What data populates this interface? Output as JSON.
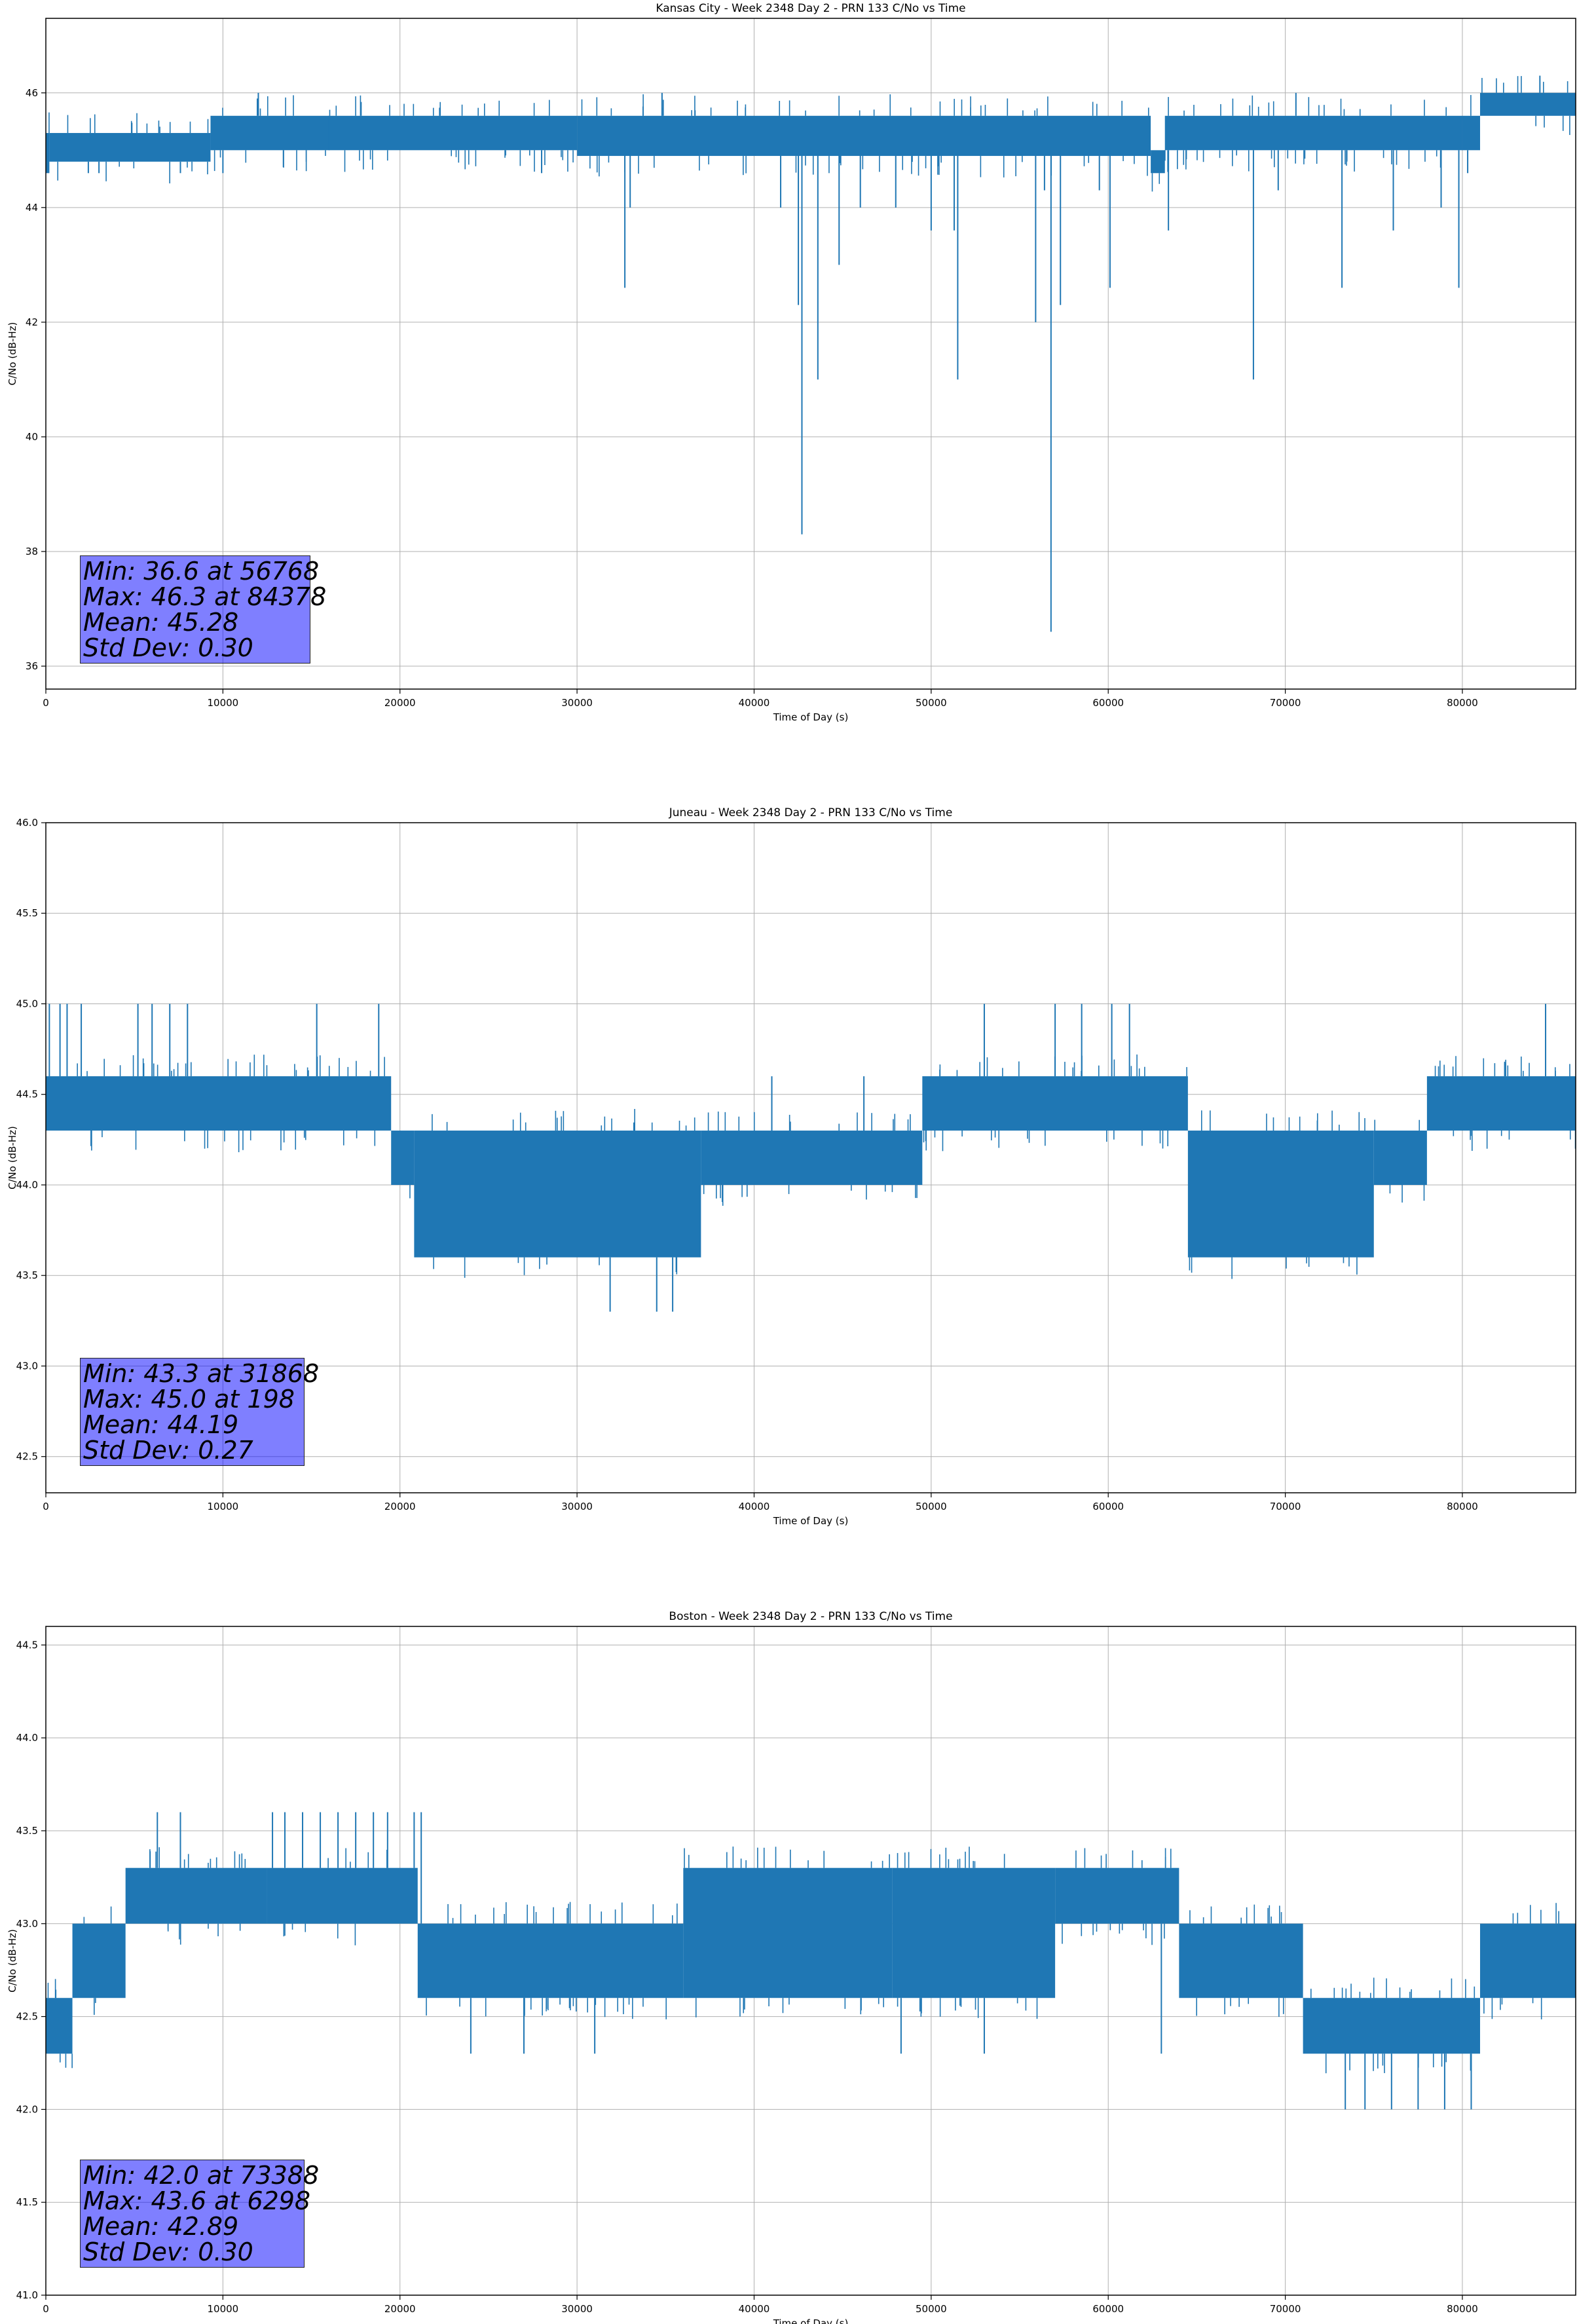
{
  "colors": {
    "series": "#1f77b4",
    "grid": "#b0b0b0",
    "stats_bg": "#8080ff"
  },
  "chart_data": [
    {
      "type": "line",
      "title": "Kansas City - Week 2348 Day 2 - PRN 133 C/No vs Time",
      "xlabel": "Time of Day (s)",
      "ylabel": "C/No (dB-Hz)",
      "xlim": [
        0,
        86400
      ],
      "ylim": [
        35.6,
        47.3
      ],
      "xticks": [
        0,
        10000,
        20000,
        30000,
        40000,
        50000,
        60000,
        70000,
        80000
      ],
      "yticks": [
        36,
        38,
        40,
        42,
        44,
        46
      ],
      "ytick_labels": [
        "36",
        "38",
        "40",
        "42",
        "44",
        "46"
      ],
      "grid": true,
      "bands": [
        {
          "x": [
            0,
            200
          ],
          "y": [
            44.6,
            45.3
          ]
        },
        {
          "x": [
            200,
            9300
          ],
          "y": [
            44.8,
            45.3
          ]
        },
        {
          "x": [
            9300,
            30000
          ],
          "y": [
            45.0,
            45.6
          ]
        },
        {
          "x": [
            30000,
            62400
          ],
          "y": [
            44.9,
            45.6
          ]
        },
        {
          "x": [
            62400,
            63200
          ],
          "y": [
            44.6,
            45.0
          ]
        },
        {
          "x": [
            63200,
            80000
          ],
          "y": [
            45.0,
            45.6
          ]
        },
        {
          "x": [
            80000,
            81000
          ],
          "y": [
            45.0,
            45.6
          ]
        },
        {
          "x": [
            81000,
            86400
          ],
          "y": [
            45.6,
            46.0
          ]
        }
      ],
      "spikes": [
        {
          "x": 2400,
          "y": 44.6
        },
        {
          "x": 3000,
          "y": 44.6
        },
        {
          "x": 7600,
          "y": 44.6
        },
        {
          "x": 10000,
          "y": 44.6
        },
        {
          "x": 12000,
          "y": 46.0
        },
        {
          "x": 16000,
          "y": 45.0
        },
        {
          "x": 28000,
          "y": 44.6
        },
        {
          "x": 32700,
          "y": 42.6
        },
        {
          "x": 33000,
          "y": 44.0
        },
        {
          "x": 34800,
          "y": 46.0
        },
        {
          "x": 41500,
          "y": 44.0
        },
        {
          "x": 42500,
          "y": 42.3
        },
        {
          "x": 42700,
          "y": 38.3
        },
        {
          "x": 43600,
          "y": 41.0
        },
        {
          "x": 44800,
          "y": 43.0
        },
        {
          "x": 46000,
          "y": 44.0
        },
        {
          "x": 48000,
          "y": 44.0
        },
        {
          "x": 50000,
          "y": 43.6
        },
        {
          "x": 51300,
          "y": 43.6
        },
        {
          "x": 51500,
          "y": 41.0
        },
        {
          "x": 55900,
          "y": 42.0
        },
        {
          "x": 56400,
          "y": 44.3
        },
        {
          "x": 56768,
          "y": 36.6
        },
        {
          "x": 57300,
          "y": 42.3
        },
        {
          "x": 59500,
          "y": 44.3
        },
        {
          "x": 60100,
          "y": 42.6
        },
        {
          "x": 63400,
          "y": 43.6
        },
        {
          "x": 68200,
          "y": 41.0
        },
        {
          "x": 69600,
          "y": 44.3
        },
        {
          "x": 70600,
          "y": 46.0
        },
        {
          "x": 73200,
          "y": 42.6
        },
        {
          "x": 76100,
          "y": 43.6
        },
        {
          "x": 78800,
          "y": 44.0
        },
        {
          "x": 79800,
          "y": 42.6
        },
        {
          "x": 80300,
          "y": 44.6
        },
        {
          "x": 84378,
          "y": 46.3
        }
      ],
      "stats": {
        "min": "Min: 36.6 at 56768",
        "max": "Max: 46.3 at 84378",
        "mean": "Mean: 45.28",
        "std": "Std Dev: 0.30"
      }
    },
    {
      "type": "line",
      "title": "Juneau - Week 2348 Day 2 - PRN 133 C/No vs Time",
      "xlabel": "Time of Day (s)",
      "ylabel": "C/No (dB-Hz)",
      "xlim": [
        0,
        86400
      ],
      "ylim": [
        42.3,
        46.0
      ],
      "xticks": [
        0,
        10000,
        20000,
        30000,
        40000,
        50000,
        60000,
        70000,
        80000
      ],
      "yticks": [
        42.5,
        43.0,
        43.5,
        44.0,
        44.5,
        45.0,
        45.5,
        46.0
      ],
      "ytick_labels": [
        "42.5",
        "43.0",
        "43.5",
        "44.0",
        "44.5",
        "45.0",
        "45.5",
        "46.0"
      ],
      "grid": true,
      "bands": [
        {
          "x": [
            0,
            19500
          ],
          "y": [
            44.3,
            44.6
          ]
        },
        {
          "x": [
            19500,
            20800
          ],
          "y": [
            44.0,
            44.3
          ]
        },
        {
          "x": [
            20800,
            37000
          ],
          "y": [
            43.6,
            44.3
          ]
        },
        {
          "x": [
            37000,
            49500
          ],
          "y": [
            44.0,
            44.3
          ]
        },
        {
          "x": [
            49500,
            64500
          ],
          "y": [
            44.3,
            44.6
          ]
        },
        {
          "x": [
            64500,
            75000
          ],
          "y": [
            43.6,
            44.3
          ]
        },
        {
          "x": [
            75000,
            78000
          ],
          "y": [
            44.0,
            44.3
          ]
        },
        {
          "x": [
            78000,
            86400
          ],
          "y": [
            44.3,
            44.6
          ]
        }
      ],
      "spikes": [
        {
          "x": 198,
          "y": 45.0
        },
        {
          "x": 800,
          "y": 45.0
        },
        {
          "x": 1200,
          "y": 45.0
        },
        {
          "x": 2000,
          "y": 45.0
        },
        {
          "x": 5200,
          "y": 45.0
        },
        {
          "x": 6000,
          "y": 45.0
        },
        {
          "x": 7000,
          "y": 45.0
        },
        {
          "x": 8000,
          "y": 45.0
        },
        {
          "x": 15300,
          "y": 45.0
        },
        {
          "x": 18800,
          "y": 45.0
        },
        {
          "x": 31868,
          "y": 43.3
        },
        {
          "x": 34500,
          "y": 43.3
        },
        {
          "x": 35400,
          "y": 43.3
        },
        {
          "x": 41000,
          "y": 44.6
        },
        {
          "x": 46200,
          "y": 44.6
        },
        {
          "x": 53000,
          "y": 45.0
        },
        {
          "x": 57000,
          "y": 45.0
        },
        {
          "x": 58500,
          "y": 45.0
        },
        {
          "x": 60200,
          "y": 45.0
        },
        {
          "x": 61200,
          "y": 45.0
        },
        {
          "x": 84700,
          "y": 45.0
        }
      ],
      "stats": {
        "min": "Min: 43.3 at 31868",
        "max": "Max: 45.0 at 198",
        "mean": "Mean: 44.19",
        "std": "Std Dev: 0.27"
      }
    },
    {
      "type": "line",
      "title": "Boston - Week 2348 Day 2 - PRN 133 C/No vs Time",
      "xlabel": "Time of Day (s)",
      "ylabel": "C/No (dB-Hz)",
      "xlim": [
        0,
        86400
      ],
      "ylim": [
        41.0,
        44.6
      ],
      "xticks": [
        0,
        10000,
        20000,
        30000,
        40000,
        50000,
        60000,
        70000,
        80000
      ],
      "yticks": [
        41.0,
        41.5,
        42.0,
        42.5,
        43.0,
        43.5,
        44.0,
        44.5
      ],
      "ytick_labels": [
        "41.0",
        "41.5",
        "42.0",
        "42.5",
        "43.0",
        "43.5",
        "44.0",
        "44.5"
      ],
      "grid": true,
      "bands": [
        {
          "x": [
            0,
            1500
          ],
          "y": [
            42.3,
            42.6
          ]
        },
        {
          "x": [
            1500,
            4500
          ],
          "y": [
            42.6,
            43.0
          ]
        },
        {
          "x": [
            4500,
            12500
          ],
          "y": [
            43.0,
            43.3
          ]
        },
        {
          "x": [
            12500,
            21000
          ],
          "y": [
            43.0,
            43.3
          ]
        },
        {
          "x": [
            21000,
            36000
          ],
          "y": [
            42.6,
            43.0
          ]
        },
        {
          "x": [
            36000,
            47800
          ],
          "y": [
            42.6,
            43.3
          ]
        },
        {
          "x": [
            47800,
            57000
          ],
          "y": [
            42.6,
            43.3
          ]
        },
        {
          "x": [
            57000,
            64000
          ],
          "y": [
            43.0,
            43.3
          ]
        },
        {
          "x": [
            64000,
            71000
          ],
          "y": [
            42.6,
            43.0
          ]
        },
        {
          "x": [
            71000,
            81000
          ],
          "y": [
            42.3,
            42.6
          ]
        },
        {
          "x": [
            81000,
            86400
          ],
          "y": [
            42.6,
            43.0
          ]
        }
      ],
      "spikes": [
        {
          "x": 6298,
          "y": 43.6
        },
        {
          "x": 7600,
          "y": 43.6
        },
        {
          "x": 12800,
          "y": 43.6
        },
        {
          "x": 13500,
          "y": 43.6
        },
        {
          "x": 14500,
          "y": 43.6
        },
        {
          "x": 15500,
          "y": 43.6
        },
        {
          "x": 16500,
          "y": 43.6
        },
        {
          "x": 17500,
          "y": 43.6
        },
        {
          "x": 18500,
          "y": 43.6
        },
        {
          "x": 19300,
          "y": 43.6
        },
        {
          "x": 20800,
          "y": 43.6
        },
        {
          "x": 21200,
          "y": 43.6
        },
        {
          "x": 24000,
          "y": 42.3
        },
        {
          "x": 27000,
          "y": 42.3
        },
        {
          "x": 31000,
          "y": 42.3
        },
        {
          "x": 48300,
          "y": 42.3
        },
        {
          "x": 53000,
          "y": 42.3
        },
        {
          "x": 63000,
          "y": 42.3
        },
        {
          "x": 73388,
          "y": 42.0
        },
        {
          "x": 74500,
          "y": 42.0
        },
        {
          "x": 76000,
          "y": 42.0
        },
        {
          "x": 77500,
          "y": 42.0
        },
        {
          "x": 79000,
          "y": 42.0
        },
        {
          "x": 80500,
          "y": 42.0
        }
      ],
      "stats": {
        "min": "Min: 42.0 at 73388",
        "max": "Max: 43.6 at 6298",
        "mean": "Mean: 42.89",
        "std": "Std Dev: 0.30"
      }
    }
  ]
}
